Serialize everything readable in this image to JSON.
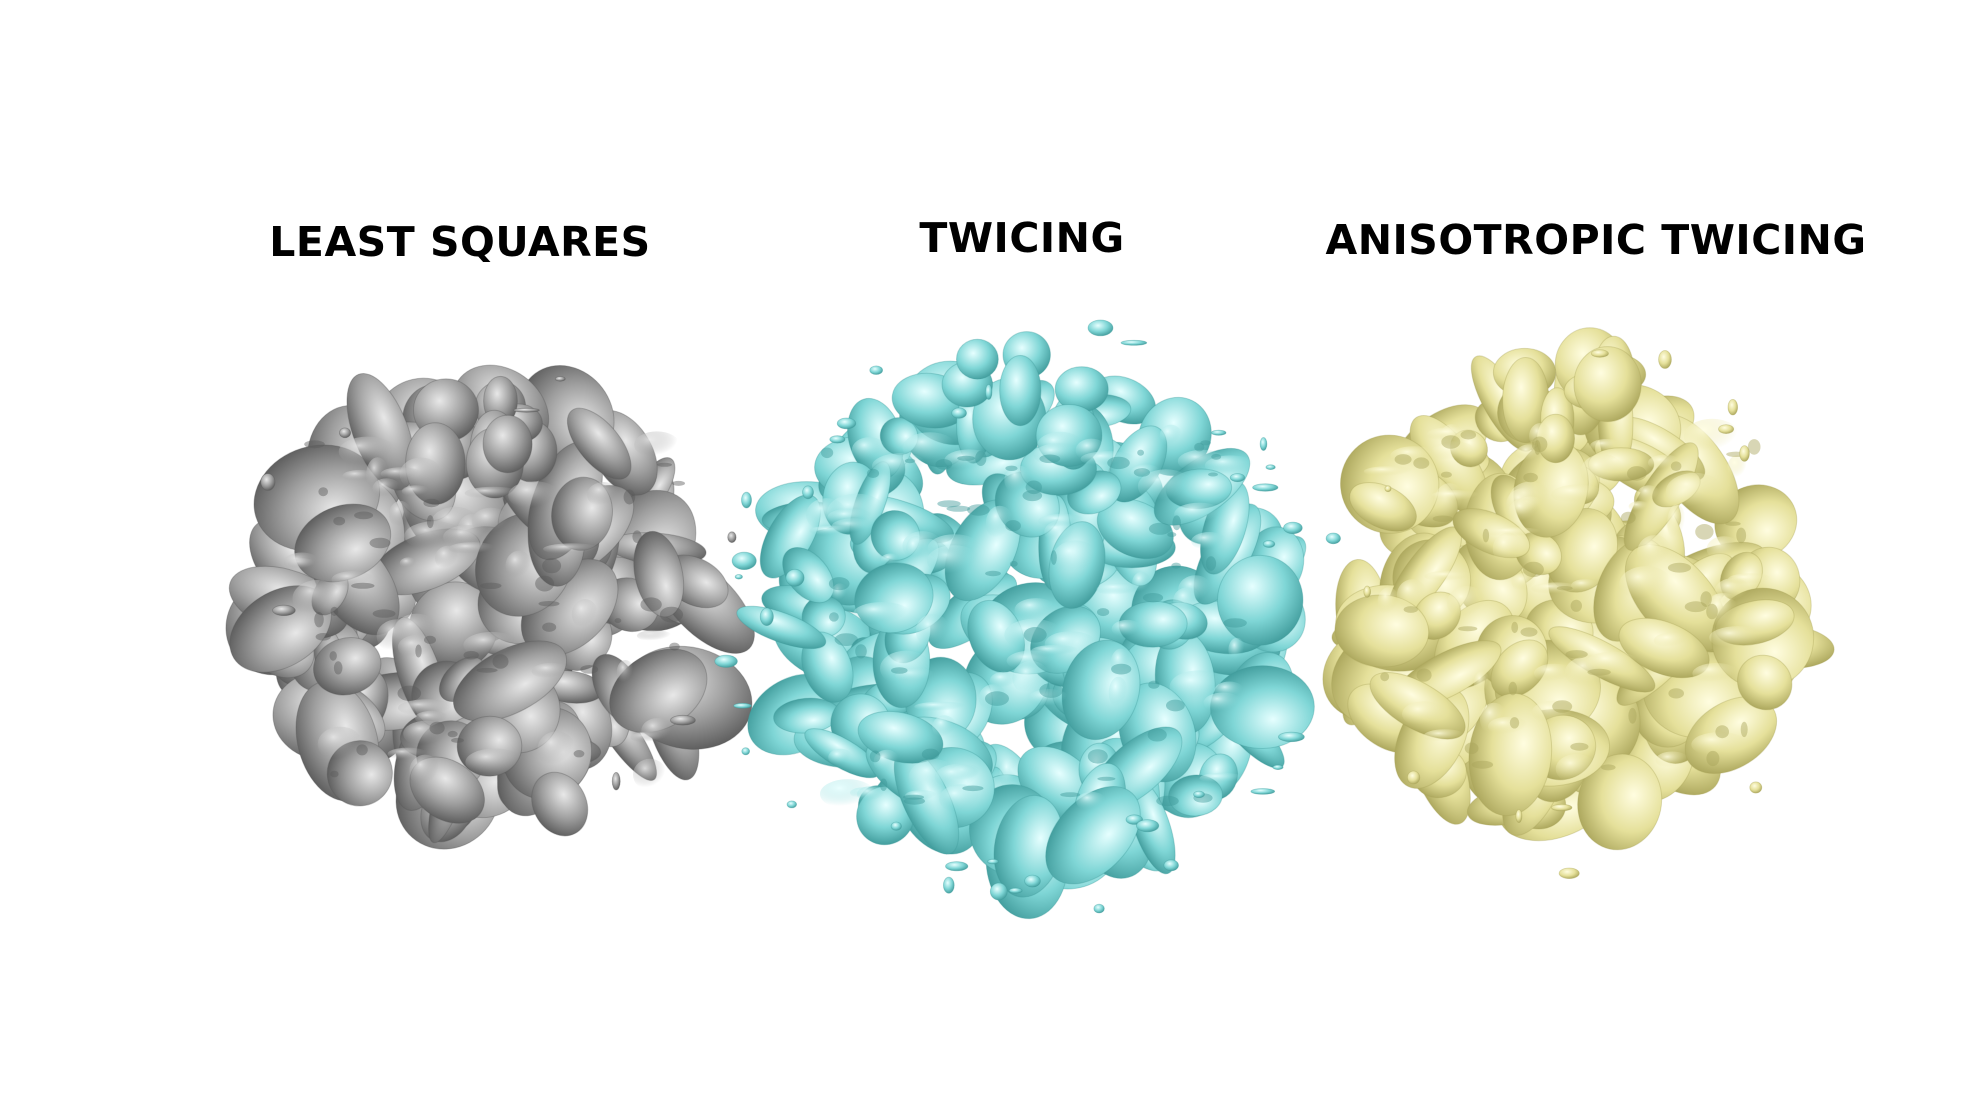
{
  "panels": [
    {
      "id": "ls",
      "label": "LEAST SQUARES",
      "colors": {
        "base": "#9e9e9e",
        "light": "#e8e8e8",
        "dark": "#5a5a5a"
      }
    },
    {
      "id": "tw",
      "label": "TWICING",
      "colors": {
        "base": "#7fd6d6",
        "light": "#e6ffff",
        "dark": "#3f9a9a"
      }
    },
    {
      "id": "at",
      "label": "ANISOTROPIC TWICING",
      "colors": {
        "base": "#e5e09a",
        "light": "#fffde0",
        "dark": "#a9a45a"
      }
    }
  ]
}
